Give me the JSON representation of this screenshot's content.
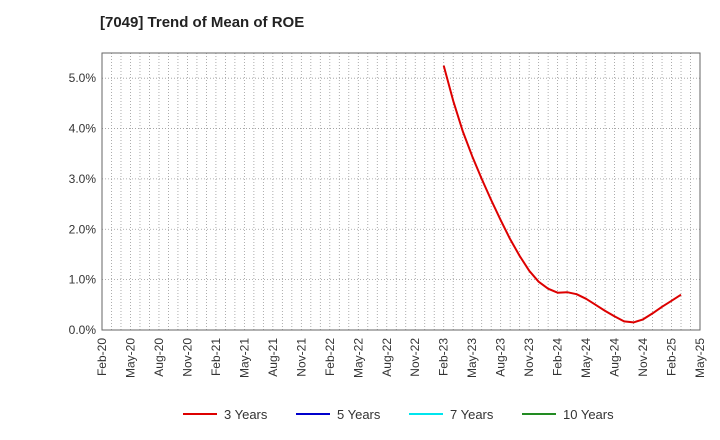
{
  "chart_data": {
    "type": "line",
    "title": "[7049]  Trend of Mean of ROE",
    "x_tick_labels": [
      "Feb-20",
      "May-20",
      "Aug-20",
      "Nov-20",
      "Feb-21",
      "May-21",
      "Aug-21",
      "Nov-21",
      "Feb-22",
      "May-22",
      "Aug-22",
      "Nov-22",
      "Feb-23",
      "May-23",
      "Aug-23",
      "Nov-23",
      "Feb-24",
      "May-24",
      "Aug-24",
      "Nov-24",
      "Feb-25",
      "May-25"
    ],
    "x_range": [
      "2020-02",
      "2025-05"
    ],
    "y_ticks": [
      0,
      1,
      2,
      3,
      4,
      5
    ],
    "y_tick_labels": [
      "0.0%",
      "1.0%",
      "2.0%",
      "3.0%",
      "4.0%",
      "5.0%"
    ],
    "ylim": [
      0,
      5.5
    ],
    "grid": true,
    "legend_position": "bottom",
    "series": [
      {
        "name": "3 Years",
        "color": "#dd0000",
        "points": [
          [
            "2023-02",
            5.25
          ],
          [
            "2023-03",
            4.55
          ],
          [
            "2023-04",
            3.95
          ],
          [
            "2023-05",
            3.45
          ],
          [
            "2023-06",
            3.0
          ],
          [
            "2023-07",
            2.58
          ],
          [
            "2023-08",
            2.18
          ],
          [
            "2023-09",
            1.8
          ],
          [
            "2023-10",
            1.47
          ],
          [
            "2023-11",
            1.18
          ],
          [
            "2023-12",
            0.96
          ],
          [
            "2024-01",
            0.82
          ],
          [
            "2024-02",
            0.74
          ],
          [
            "2024-03",
            0.75
          ],
          [
            "2024-04",
            0.71
          ],
          [
            "2024-05",
            0.62
          ],
          [
            "2024-06",
            0.5
          ],
          [
            "2024-07",
            0.38
          ],
          [
            "2024-08",
            0.27
          ],
          [
            "2024-09",
            0.17
          ],
          [
            "2024-10",
            0.15
          ],
          [
            "2024-11",
            0.21
          ],
          [
            "2024-12",
            0.33
          ],
          [
            "2025-01",
            0.46
          ],
          [
            "2025-02",
            0.58
          ],
          [
            "2025-03",
            0.7
          ]
        ]
      },
      {
        "name": "5 Years",
        "color": "#0000cc",
        "points": []
      },
      {
        "name": "7 Years",
        "color": "#00e5ee",
        "points": []
      },
      {
        "name": "10 Years",
        "color": "#228b22",
        "points": []
      }
    ]
  }
}
